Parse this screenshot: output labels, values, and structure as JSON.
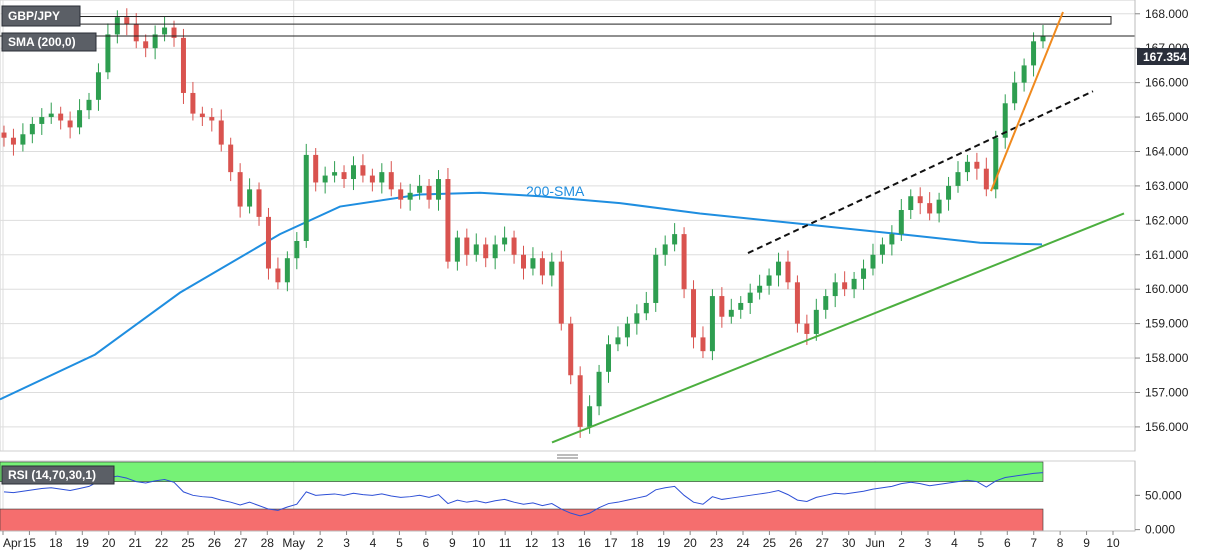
{
  "chart_data": [
    {
      "type": "candlestick",
      "symbol": "GBP/JPY",
      "indicator_label": "SMA (200,0)",
      "annotation": "200-SMA",
      "last_price_label": "167.354",
      "y_ticks": [
        "168.000",
        "167.000",
        "166.000",
        "165.000",
        "164.000",
        "163.000",
        "162.000",
        "161.000",
        "160.000",
        "159.000",
        "158.000",
        "157.000",
        "156.000"
      ],
      "ylim": [
        155.3,
        168.4
      ],
      "x_labels": [
        "Apr",
        "15",
        "18",
        "19",
        "20",
        "21",
        "22",
        "25",
        "26",
        "27",
        "28",
        "May",
        "2",
        "3",
        "4",
        "5",
        "6",
        "9",
        "10",
        "11",
        "12",
        "13",
        "16",
        "17",
        "18",
        "19",
        "20",
        "23",
        "24",
        "25",
        "26",
        "27",
        "30",
        "Jun",
        "2",
        "3",
        "4",
        "5",
        "6",
        "7",
        "8",
        "9",
        "10"
      ],
      "closes": [
        164.4,
        164.2,
        164.5,
        164.8,
        165.0,
        165.1,
        164.9,
        164.7,
        165.2,
        165.5,
        166.3,
        167.4,
        167.9,
        167.7,
        167.2,
        167.0,
        167.4,
        167.6,
        167.3,
        165.7,
        165.1,
        165.0,
        164.9,
        164.2,
        163.4,
        162.4,
        162.9,
        162.1,
        160.6,
        160.2,
        160.9,
        161.4,
        163.9,
        163.1,
        163.3,
        163.4,
        163.2,
        163.6,
        163.3,
        163.1,
        163.4,
        162.9,
        162.6,
        162.8,
        163.0,
        162.6,
        163.2,
        160.8,
        161.5,
        161.0,
        161.3,
        160.9,
        161.3,
        161.5,
        161.0,
        160.6,
        160.9,
        160.4,
        160.8,
        159.0,
        157.5,
        156.0,
        156.6,
        157.6,
        158.4,
        158.6,
        159.0,
        159.3,
        159.6,
        161.0,
        161.3,
        161.6,
        160.0,
        158.6,
        158.2,
        159.8,
        159.2,
        159.4,
        159.6,
        159.9,
        160.1,
        160.4,
        160.8,
        160.2,
        159.0,
        158.7,
        159.4,
        159.8,
        160.2,
        160.0,
        160.3,
        160.6,
        161.0,
        161.3,
        161.6,
        162.3,
        162.7,
        162.5,
        162.2,
        162.6,
        163.0,
        163.4,
        163.7,
        163.5,
        162.9,
        164.4,
        165.4,
        166.0,
        166.5,
        167.2,
        167.354
      ],
      "rsi": {
        "label": "RSI (14,70,30,1)",
        "y_ticks": [
          "50.000",
          "0.000"
        ],
        "levels": [
          70,
          30
        ],
        "ylim": [
          -2,
          100
        ],
        "values": [
          55,
          54,
          56,
          58,
          60,
          61,
          59,
          57,
          60,
          63,
          70,
          75,
          78,
          75,
          70,
          68,
          71,
          73,
          69,
          55,
          50,
          48,
          47,
          43,
          40,
          36,
          40,
          35,
          30,
          28,
          33,
          37,
          55,
          50,
          51,
          52,
          50,
          53,
          51,
          50,
          52,
          49,
          47,
          48,
          50,
          47,
          51,
          38,
          43,
          40,
          42,
          39,
          42,
          44,
          40,
          37,
          39,
          35,
          38,
          30,
          24,
          20,
          24,
          32,
          38,
          40,
          43,
          46,
          49,
          58,
          61,
          63,
          50,
          40,
          37,
          48,
          44,
          46,
          48,
          50,
          52,
          54,
          57,
          51,
          43,
          41,
          47,
          50,
          53,
          52,
          54,
          56,
          59,
          61,
          63,
          67,
          69,
          67,
          64,
          66,
          68,
          70,
          72,
          70,
          62,
          71,
          76,
          78,
          80,
          82,
          83
        ]
      },
      "colors": {
        "up": "#2e9e50",
        "down": "#d9534f",
        "sma": "#1f8ee0",
        "support": "#4caf3f",
        "trend_fast": "#f08a1e",
        "rsi_line": "#2d4fd6",
        "rsi_high": "#76f276",
        "rsi_low": "#f56e6e",
        "grid": "#dddddd",
        "price_label_bg": "#2a2f3b"
      }
    }
  ]
}
